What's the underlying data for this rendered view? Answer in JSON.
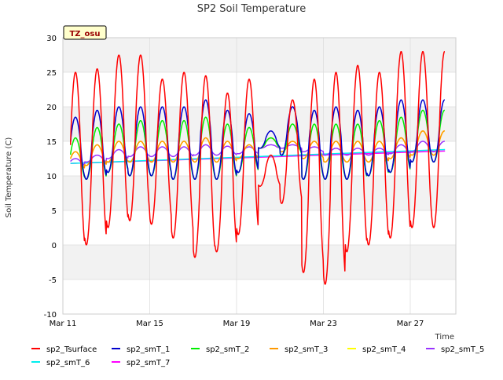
{
  "chart_data": {
    "type": "line",
    "title": "SP2 Soil Temperature",
    "xlabel": "Time",
    "ylabel": "Soil Temperature (C)",
    "badge": "TZ_osu",
    "xlim_days": [
      11,
      29.1
    ],
    "ylim": [
      -10,
      30
    ],
    "y_ticks": [
      -10,
      -5,
      0,
      5,
      10,
      15,
      20,
      25,
      30
    ],
    "x_ticks": [
      {
        "label": "Mar 11",
        "day": 11
      },
      {
        "label": "Mar 15",
        "day": 15
      },
      {
        "label": "Mar 19",
        "day": 19
      },
      {
        "label": "Mar 23",
        "day": 23
      },
      {
        "label": "Mar 27",
        "day": 27
      }
    ],
    "grid": true,
    "legend_position": "bottom",
    "series": [
      {
        "name": "sp2_Tsurface",
        "color": "#ff0000",
        "daily_min": [
          -1.0,
          0.0,
          2.5,
          3.5,
          3.0,
          1.0,
          -1.8,
          -1.0,
          1.5,
          8.5,
          6.0,
          -4.0,
          -5.7,
          -1.0,
          0.0,
          1.0,
          2.5
        ],
        "daily_max": [
          25.0,
          25.5,
          27.5,
          27.5,
          24.0,
          25.0,
          24.5,
          22.0,
          24.0,
          13.0,
          21.0,
          24.0,
          25.0,
          26.0,
          25.0,
          28.0,
          28.0
        ]
      },
      {
        "name": "sp2_smT_1",
        "color": "#0000cc",
        "daily_min": [
          9.5,
          9.5,
          10.5,
          10.0,
          10.0,
          9.5,
          9.5,
          9.5,
          10.5,
          14.0,
          13.0,
          9.5,
          9.5,
          9.5,
          10.0,
          10.5,
          12.0
        ],
        "daily_max": [
          18.5,
          19.5,
          20.0,
          20.0,
          20.0,
          20.0,
          21.0,
          19.5,
          19.0,
          16.5,
          20.0,
          19.5,
          20.0,
          19.5,
          20.0,
          21.0,
          21.0
        ]
      },
      {
        "name": "sp2_smT_2",
        "color": "#00ee00",
        "daily_min": [
          9.5,
          9.5,
          10.5,
          10.0,
          10.0,
          9.5,
          9.5,
          9.5,
          10.5,
          14.0,
          13.0,
          9.5,
          9.5,
          9.5,
          10.0,
          10.5,
          12.0
        ],
        "daily_max": [
          15.5,
          17.0,
          17.5,
          18.0,
          18.0,
          18.0,
          18.5,
          17.5,
          17.0,
          15.5,
          17.5,
          17.5,
          17.5,
          17.5,
          18.0,
          18.5,
          19.5
        ]
      },
      {
        "name": "sp2_smT_3",
        "color": "#ff9900",
        "daily_min": [
          11.0,
          11.5,
          12.0,
          12.0,
          12.0,
          12.0,
          12.0,
          12.0,
          12.5,
          14.0,
          13.5,
          12.5,
          12.0,
          12.0,
          12.0,
          12.5,
          13.0
        ],
        "daily_max": [
          13.5,
          14.5,
          15.0,
          15.0,
          15.0,
          15.0,
          15.5,
          15.0,
          14.5,
          15.5,
          15.0,
          15.0,
          15.0,
          15.0,
          15.0,
          15.5,
          16.5
        ]
      },
      {
        "name": "sp2_smT_4",
        "color": "#ffff00",
        "daily_min": [
          11.0,
          11.5,
          12.0,
          12.0,
          12.0,
          12.0,
          12.0,
          12.0,
          12.5,
          14.0,
          13.5,
          12.5,
          12.0,
          12.0,
          12.0,
          12.5,
          13.0
        ],
        "daily_max": [
          13.5,
          14.5,
          15.0,
          15.0,
          15.0,
          15.0,
          15.5,
          15.0,
          14.5,
          15.5,
          15.0,
          15.0,
          15.0,
          15.0,
          15.0,
          15.5,
          16.5
        ]
      },
      {
        "name": "sp2_smT_5",
        "color": "#9933ff",
        "daily_min": [
          11.5,
          12.0,
          12.5,
          12.8,
          12.8,
          12.8,
          13.0,
          13.0,
          13.2,
          14.0,
          14.0,
          13.5,
          13.0,
          13.0,
          13.0,
          13.2,
          13.5
        ],
        "daily_max": [
          12.5,
          13.0,
          13.8,
          14.2,
          14.2,
          14.2,
          14.5,
          14.3,
          14.2,
          14.5,
          14.5,
          14.2,
          14.0,
          14.0,
          14.0,
          14.5,
          15.0
        ]
      },
      {
        "name": "sp2_smT_6",
        "color": "#00eeee",
        "start": 11.8,
        "end": 13.8
      },
      {
        "name": "sp2_smT_7",
        "color": "#ff00ff",
        "start": 11.8,
        "end": 13.6
      }
    ]
  }
}
